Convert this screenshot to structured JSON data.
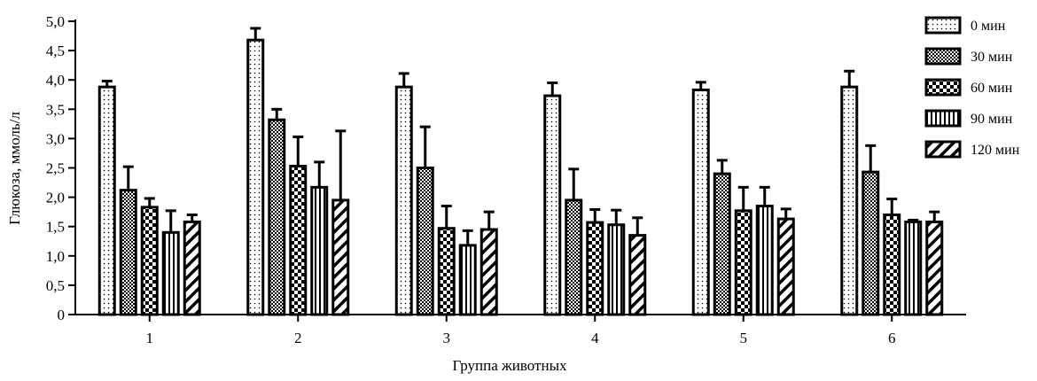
{
  "chart_data": {
    "type": "bar",
    "title": "",
    "xlabel": "Группа животных",
    "ylabel": "Глюкоза, ммоль/л",
    "ylim": [
      0,
      5
    ],
    "yticks": [
      "0",
      "0,5",
      "1,0",
      "1,5",
      "2,0",
      "2,5",
      "3,0",
      "3,5",
      "4,0",
      "4,5",
      "5,0"
    ],
    "categories": [
      "1",
      "2",
      "3",
      "4",
      "5",
      "6"
    ],
    "grid": false,
    "legend_position": "top-right",
    "series": [
      {
        "name": "0 мин",
        "pattern": "dots",
        "values": [
          3.88,
          4.68,
          3.88,
          3.73,
          3.83,
          3.88
        ],
        "errors": [
          0.1,
          0.2,
          0.23,
          0.22,
          0.13,
          0.27
        ]
      },
      {
        "name": "30 мин",
        "pattern": "checker",
        "values": [
          2.12,
          3.32,
          2.5,
          1.95,
          2.4,
          2.43
        ],
        "errors": [
          0.4,
          0.18,
          0.7,
          0.53,
          0.23,
          0.45
        ]
      },
      {
        "name": "60 мин",
        "pattern": "grid",
        "values": [
          1.83,
          2.53,
          1.47,
          1.57,
          1.77,
          1.7
        ],
        "errors": [
          0.15,
          0.5,
          0.38,
          0.22,
          0.4,
          0.27
        ]
      },
      {
        "name": "90 мин",
        "pattern": "vertical",
        "values": [
          1.4,
          2.17,
          1.18,
          1.53,
          1.85,
          1.58
        ],
        "errors": [
          0.37,
          0.43,
          0.25,
          0.25,
          0.32,
          0.03
        ]
      },
      {
        "name": "120 мин",
        "pattern": "diagonal",
        "values": [
          1.58,
          1.95,
          1.45,
          1.35,
          1.63,
          1.58
        ],
        "errors": [
          0.12,
          1.18,
          0.3,
          0.3,
          0.17,
          0.17
        ]
      }
    ]
  }
}
